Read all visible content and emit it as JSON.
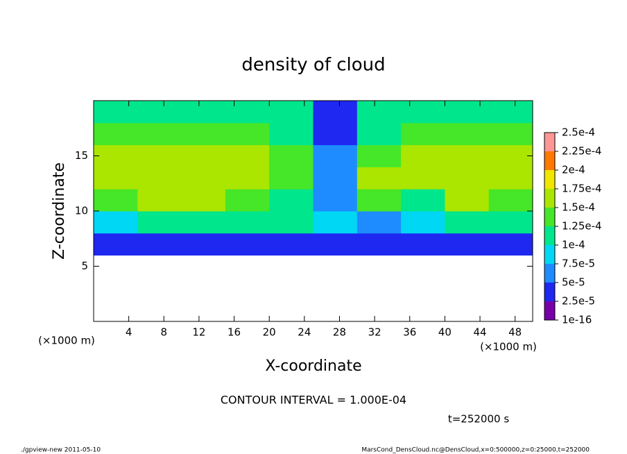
{
  "chart_data": {
    "type": "heatmap",
    "title": "density of cloud",
    "xlabel": "X-coordinate",
    "ylabel": "Z-coordinate",
    "x_unit_label": "(×1000 m)",
    "y_unit_label": "(×1000 m)",
    "contour_note": "CONTOUR INTERVAL = 1.000E-04",
    "time_label": "t=252000 s",
    "footer_left": "./gpview-new  2011-05-10",
    "footer_right": "MarsCond_DensCloud.nc@DensCloud,x=0:500000,z=0:25000,t=252000",
    "xlim": [
      0,
      50
    ],
    "ylim": [
      0,
      20
    ],
    "xticks": [
      4,
      8,
      12,
      16,
      20,
      24,
      28,
      32,
      36,
      40,
      44,
      48
    ],
    "yticks": [
      5,
      10,
      15
    ],
    "x_edges": [
      0,
      5,
      10,
      15,
      20,
      25,
      30,
      35,
      40,
      45,
      50
    ],
    "z_edges": [
      0,
      2,
      4,
      6,
      8,
      10,
      12,
      14,
      16,
      18,
      20
    ],
    "values": [
      [
        null,
        null,
        null,
        null,
        null,
        null,
        null,
        null,
        null,
        null
      ],
      [
        null,
        null,
        null,
        null,
        null,
        null,
        null,
        null,
        null,
        null
      ],
      [
        null,
        null,
        null,
        null,
        null,
        null,
        null,
        null,
        null,
        null
      ],
      [
        3e-05,
        3e-05,
        3e-05,
        3e-05,
        3e-05,
        3e-05,
        4e-05,
        3e-05,
        3e-05,
        3e-05
      ],
      [
        9e-05,
        0.0001,
        0.0001,
        0.0001,
        0.00011,
        8e-05,
        6e-05,
        8e-05,
        0.0001,
        0.0001
      ],
      [
        0.00014,
        0.00015,
        0.00015,
        0.00014,
        0.0001,
        5e-05,
        0.00013,
        0.00012,
        0.00015,
        0.00014
      ],
      [
        0.00015,
        0.00016,
        0.00016,
        0.00015,
        0.00013,
        6e-05,
        0.00016,
        0.00015,
        0.00016,
        0.00015
      ],
      [
        0.00015,
        0.00016,
        0.00016,
        0.00015,
        0.00013,
        5e-05,
        0.00014,
        0.00015,
        0.00016,
        0.00015
      ],
      [
        0.00013,
        0.00014,
        0.00014,
        0.00013,
        0.00012,
        4e-05,
        0.0001,
        0.00013,
        0.00014,
        0.00013
      ],
      [
        0.00011,
        0.00011,
        0.00011,
        0.00011,
        0.00011,
        4e-05,
        0.0001,
        0.00011,
        0.00011,
        0.00011
      ]
    ],
    "levels": [
      {
        "value": 1e-16,
        "label": "1e-16"
      },
      {
        "value": 2.5e-05,
        "label": "2.5e-5"
      },
      {
        "value": 5e-05,
        "label": "5e-5"
      },
      {
        "value": 7.5e-05,
        "label": "7.5e-5"
      },
      {
        "value": 0.0001,
        "label": "1e-4"
      },
      {
        "value": 0.000125,
        "label": "1.25e-4"
      },
      {
        "value": 0.00015,
        "label": "1.5e-4"
      },
      {
        "value": 0.000175,
        "label": "1.75e-4"
      },
      {
        "value": 0.0002,
        "label": "2e-4"
      },
      {
        "value": 0.000225,
        "label": "2.25e-4"
      },
      {
        "value": 0.00025,
        "label": "2.5e-4"
      }
    ],
    "colors": [
      "#7800a8",
      "#1e28f0",
      "#1e8cff",
      "#00d7f5",
      "#00e68c",
      "#46e628",
      "#aae600",
      "#f0e600",
      "#ff7800",
      "#ff9696"
    ]
  }
}
